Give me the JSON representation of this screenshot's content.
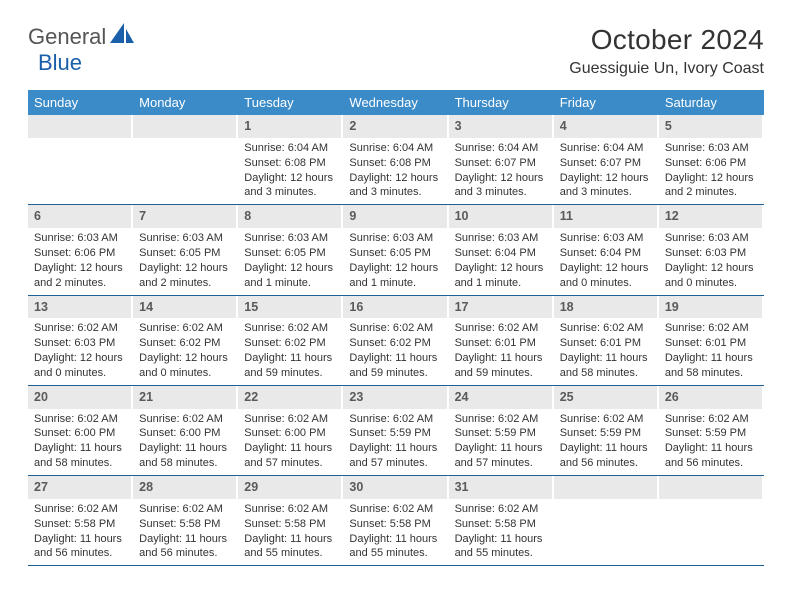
{
  "logo": {
    "text1": "General",
    "text2": "Blue"
  },
  "title": "October 2024",
  "location": "Guessiguie Un, Ivory Coast",
  "colors": {
    "header_bg": "#3b8bc9",
    "week_border": "#1f5e94",
    "daynum_bg": "#e9e9e9",
    "logo_blue": "#1a5faa"
  },
  "weekdays": [
    "Sunday",
    "Monday",
    "Tuesday",
    "Wednesday",
    "Thursday",
    "Friday",
    "Saturday"
  ],
  "weeks": [
    [
      {
        "empty": true
      },
      {
        "empty": true
      },
      {
        "num": "1",
        "sunrise": "Sunrise: 6:04 AM",
        "sunset": "Sunset: 6:08 PM",
        "daylight1": "Daylight: 12 hours",
        "daylight2": "and 3 minutes."
      },
      {
        "num": "2",
        "sunrise": "Sunrise: 6:04 AM",
        "sunset": "Sunset: 6:08 PM",
        "daylight1": "Daylight: 12 hours",
        "daylight2": "and 3 minutes."
      },
      {
        "num": "3",
        "sunrise": "Sunrise: 6:04 AM",
        "sunset": "Sunset: 6:07 PM",
        "daylight1": "Daylight: 12 hours",
        "daylight2": "and 3 minutes."
      },
      {
        "num": "4",
        "sunrise": "Sunrise: 6:04 AM",
        "sunset": "Sunset: 6:07 PM",
        "daylight1": "Daylight: 12 hours",
        "daylight2": "and 3 minutes."
      },
      {
        "num": "5",
        "sunrise": "Sunrise: 6:03 AM",
        "sunset": "Sunset: 6:06 PM",
        "daylight1": "Daylight: 12 hours",
        "daylight2": "and 2 minutes."
      }
    ],
    [
      {
        "num": "6",
        "sunrise": "Sunrise: 6:03 AM",
        "sunset": "Sunset: 6:06 PM",
        "daylight1": "Daylight: 12 hours",
        "daylight2": "and 2 minutes."
      },
      {
        "num": "7",
        "sunrise": "Sunrise: 6:03 AM",
        "sunset": "Sunset: 6:05 PM",
        "daylight1": "Daylight: 12 hours",
        "daylight2": "and 2 minutes."
      },
      {
        "num": "8",
        "sunrise": "Sunrise: 6:03 AM",
        "sunset": "Sunset: 6:05 PM",
        "daylight1": "Daylight: 12 hours",
        "daylight2": "and 1 minute."
      },
      {
        "num": "9",
        "sunrise": "Sunrise: 6:03 AM",
        "sunset": "Sunset: 6:05 PM",
        "daylight1": "Daylight: 12 hours",
        "daylight2": "and 1 minute."
      },
      {
        "num": "10",
        "sunrise": "Sunrise: 6:03 AM",
        "sunset": "Sunset: 6:04 PM",
        "daylight1": "Daylight: 12 hours",
        "daylight2": "and 1 minute."
      },
      {
        "num": "11",
        "sunrise": "Sunrise: 6:03 AM",
        "sunset": "Sunset: 6:04 PM",
        "daylight1": "Daylight: 12 hours",
        "daylight2": "and 0 minutes."
      },
      {
        "num": "12",
        "sunrise": "Sunrise: 6:03 AM",
        "sunset": "Sunset: 6:03 PM",
        "daylight1": "Daylight: 12 hours",
        "daylight2": "and 0 minutes."
      }
    ],
    [
      {
        "num": "13",
        "sunrise": "Sunrise: 6:02 AM",
        "sunset": "Sunset: 6:03 PM",
        "daylight1": "Daylight: 12 hours",
        "daylight2": "and 0 minutes."
      },
      {
        "num": "14",
        "sunrise": "Sunrise: 6:02 AM",
        "sunset": "Sunset: 6:02 PM",
        "daylight1": "Daylight: 12 hours",
        "daylight2": "and 0 minutes."
      },
      {
        "num": "15",
        "sunrise": "Sunrise: 6:02 AM",
        "sunset": "Sunset: 6:02 PM",
        "daylight1": "Daylight: 11 hours",
        "daylight2": "and 59 minutes."
      },
      {
        "num": "16",
        "sunrise": "Sunrise: 6:02 AM",
        "sunset": "Sunset: 6:02 PM",
        "daylight1": "Daylight: 11 hours",
        "daylight2": "and 59 minutes."
      },
      {
        "num": "17",
        "sunrise": "Sunrise: 6:02 AM",
        "sunset": "Sunset: 6:01 PM",
        "daylight1": "Daylight: 11 hours",
        "daylight2": "and 59 minutes."
      },
      {
        "num": "18",
        "sunrise": "Sunrise: 6:02 AM",
        "sunset": "Sunset: 6:01 PM",
        "daylight1": "Daylight: 11 hours",
        "daylight2": "and 58 minutes."
      },
      {
        "num": "19",
        "sunrise": "Sunrise: 6:02 AM",
        "sunset": "Sunset: 6:01 PM",
        "daylight1": "Daylight: 11 hours",
        "daylight2": "and 58 minutes."
      }
    ],
    [
      {
        "num": "20",
        "sunrise": "Sunrise: 6:02 AM",
        "sunset": "Sunset: 6:00 PM",
        "daylight1": "Daylight: 11 hours",
        "daylight2": "and 58 minutes."
      },
      {
        "num": "21",
        "sunrise": "Sunrise: 6:02 AM",
        "sunset": "Sunset: 6:00 PM",
        "daylight1": "Daylight: 11 hours",
        "daylight2": "and 58 minutes."
      },
      {
        "num": "22",
        "sunrise": "Sunrise: 6:02 AM",
        "sunset": "Sunset: 6:00 PM",
        "daylight1": "Daylight: 11 hours",
        "daylight2": "and 57 minutes."
      },
      {
        "num": "23",
        "sunrise": "Sunrise: 6:02 AM",
        "sunset": "Sunset: 5:59 PM",
        "daylight1": "Daylight: 11 hours",
        "daylight2": "and 57 minutes."
      },
      {
        "num": "24",
        "sunrise": "Sunrise: 6:02 AM",
        "sunset": "Sunset: 5:59 PM",
        "daylight1": "Daylight: 11 hours",
        "daylight2": "and 57 minutes."
      },
      {
        "num": "25",
        "sunrise": "Sunrise: 6:02 AM",
        "sunset": "Sunset: 5:59 PM",
        "daylight1": "Daylight: 11 hours",
        "daylight2": "and 56 minutes."
      },
      {
        "num": "26",
        "sunrise": "Sunrise: 6:02 AM",
        "sunset": "Sunset: 5:59 PM",
        "daylight1": "Daylight: 11 hours",
        "daylight2": "and 56 minutes."
      }
    ],
    [
      {
        "num": "27",
        "sunrise": "Sunrise: 6:02 AM",
        "sunset": "Sunset: 5:58 PM",
        "daylight1": "Daylight: 11 hours",
        "daylight2": "and 56 minutes."
      },
      {
        "num": "28",
        "sunrise": "Sunrise: 6:02 AM",
        "sunset": "Sunset: 5:58 PM",
        "daylight1": "Daylight: 11 hours",
        "daylight2": "and 56 minutes."
      },
      {
        "num": "29",
        "sunrise": "Sunrise: 6:02 AM",
        "sunset": "Sunset: 5:58 PM",
        "daylight1": "Daylight: 11 hours",
        "daylight2": "and 55 minutes."
      },
      {
        "num": "30",
        "sunrise": "Sunrise: 6:02 AM",
        "sunset": "Sunset: 5:58 PM",
        "daylight1": "Daylight: 11 hours",
        "daylight2": "and 55 minutes."
      },
      {
        "num": "31",
        "sunrise": "Sunrise: 6:02 AM",
        "sunset": "Sunset: 5:58 PM",
        "daylight1": "Daylight: 11 hours",
        "daylight2": "and 55 minutes."
      },
      {
        "empty": true
      },
      {
        "empty": true
      }
    ]
  ]
}
